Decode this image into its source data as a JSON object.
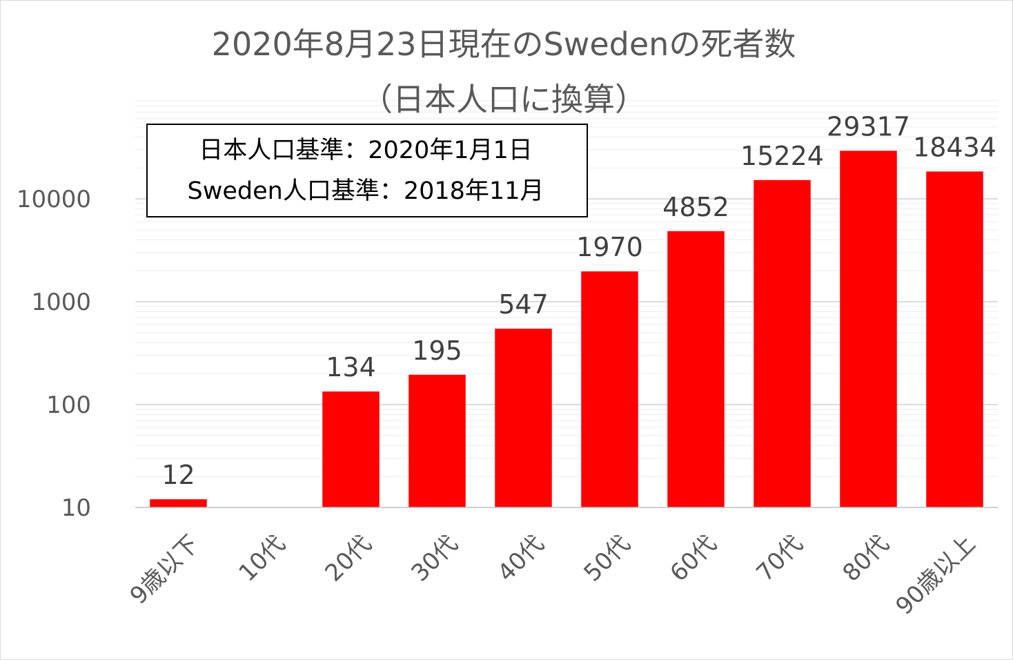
{
  "chart_data": {
    "type": "bar",
    "title": [
      "2020年8月23日現在のSwedenの死者数",
      "（日本人口に換算）"
    ],
    "annotation": [
      "日本人口基準：2020年1月1日",
      "Sweden人口基準：2018年11月"
    ],
    "categories": [
      "9歳以下",
      "10代",
      "20代",
      "30代",
      "40代",
      "50代",
      "60代",
      "70代",
      "80代",
      "90歳以上"
    ],
    "values": [
      12,
      null,
      134,
      195,
      547,
      1970,
      4852,
      15224,
      29317,
      18434
    ],
    "data_labels": [
      "12",
      "",
      "134",
      "195",
      "547",
      "1970",
      "4852",
      "15224",
      "29317",
      "18434"
    ],
    "yscale": "log",
    "ylim": [
      10,
      100000
    ],
    "yticks": [
      10,
      100,
      1000,
      10000
    ],
    "ytick_labels": [
      "10",
      "100",
      "1000",
      "10000"
    ],
    "xlabel": "",
    "ylabel": "",
    "grid": true,
    "bar_color": "#ff0000",
    "gridline_color": "#d9d9d9"
  }
}
